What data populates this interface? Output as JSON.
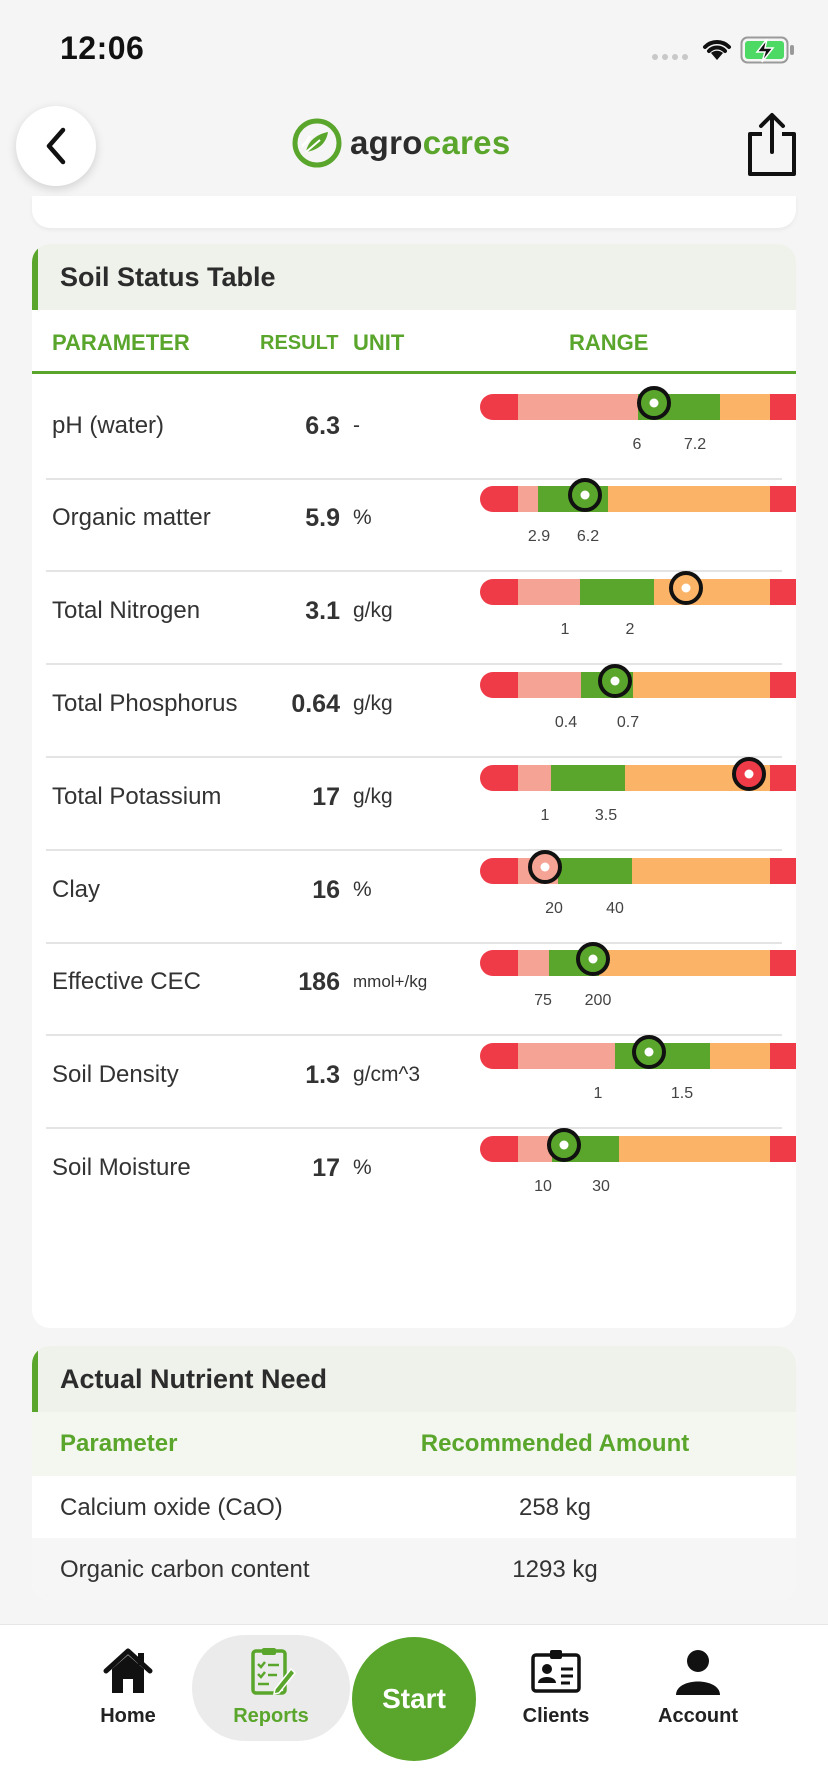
{
  "status_bar": {
    "time": "12:06"
  },
  "brand": {
    "part1": "agro",
    "part2": "cares",
    "green": "#5aa62c"
  },
  "soil_table": {
    "title": "Soil Status Table",
    "col_parameter": "PARAMETER",
    "col_result": "RESULT",
    "col_unit": "UNIT",
    "col_range": "RANGE",
    "colors": {
      "red": "#ef3a47",
      "pink": "#f4a394",
      "green": "#5aa62c",
      "orange": "#fbb467"
    },
    "rows": [
      {
        "param": "pH (water)",
        "result": "6.3",
        "unit": "-",
        "low": "6",
        "high": "7.2"
      },
      {
        "param": "Organic matter",
        "result": "5.9",
        "unit": "%",
        "low": "2.9",
        "high": "6.2"
      },
      {
        "param": "Total Nitrogen",
        "result": "3.1",
        "unit": "g/kg",
        "low": "1",
        "high": "2"
      },
      {
        "param": "Total Phosphorus",
        "result": "0.64",
        "unit": "g/kg",
        "low": "0.4",
        "high": "0.7"
      },
      {
        "param": "Total Potassium",
        "result": "17",
        "unit": "g/kg",
        "low": "1",
        "high": "3.5"
      },
      {
        "param": "Clay",
        "result": "16",
        "unit": "%",
        "low": "20",
        "high": "40"
      },
      {
        "param": "Effective CEC",
        "result": "186",
        "unit": "mmol+/kg",
        "low": "75",
        "high": "200"
      },
      {
        "param": "Soil Density",
        "result": "1.3",
        "unit": "g/cm^3",
        "low": "1",
        "high": "1.5"
      },
      {
        "param": "Soil Moisture",
        "result": "17",
        "unit": "%",
        "low": "10",
        "high": "30"
      }
    ]
  },
  "nutrient": {
    "title": "Actual Nutrient Need",
    "col_parameter": "Parameter",
    "col_amount": "Recommended Amount",
    "rows": [
      {
        "param": "Calcium oxide (CaO)",
        "amount": "258 kg"
      },
      {
        "param": "Organic carbon content",
        "amount": "1293 kg"
      }
    ]
  },
  "nav": {
    "home": "Home",
    "reports": "Reports",
    "start": "Start",
    "clients": "Clients",
    "account": "Account"
  }
}
